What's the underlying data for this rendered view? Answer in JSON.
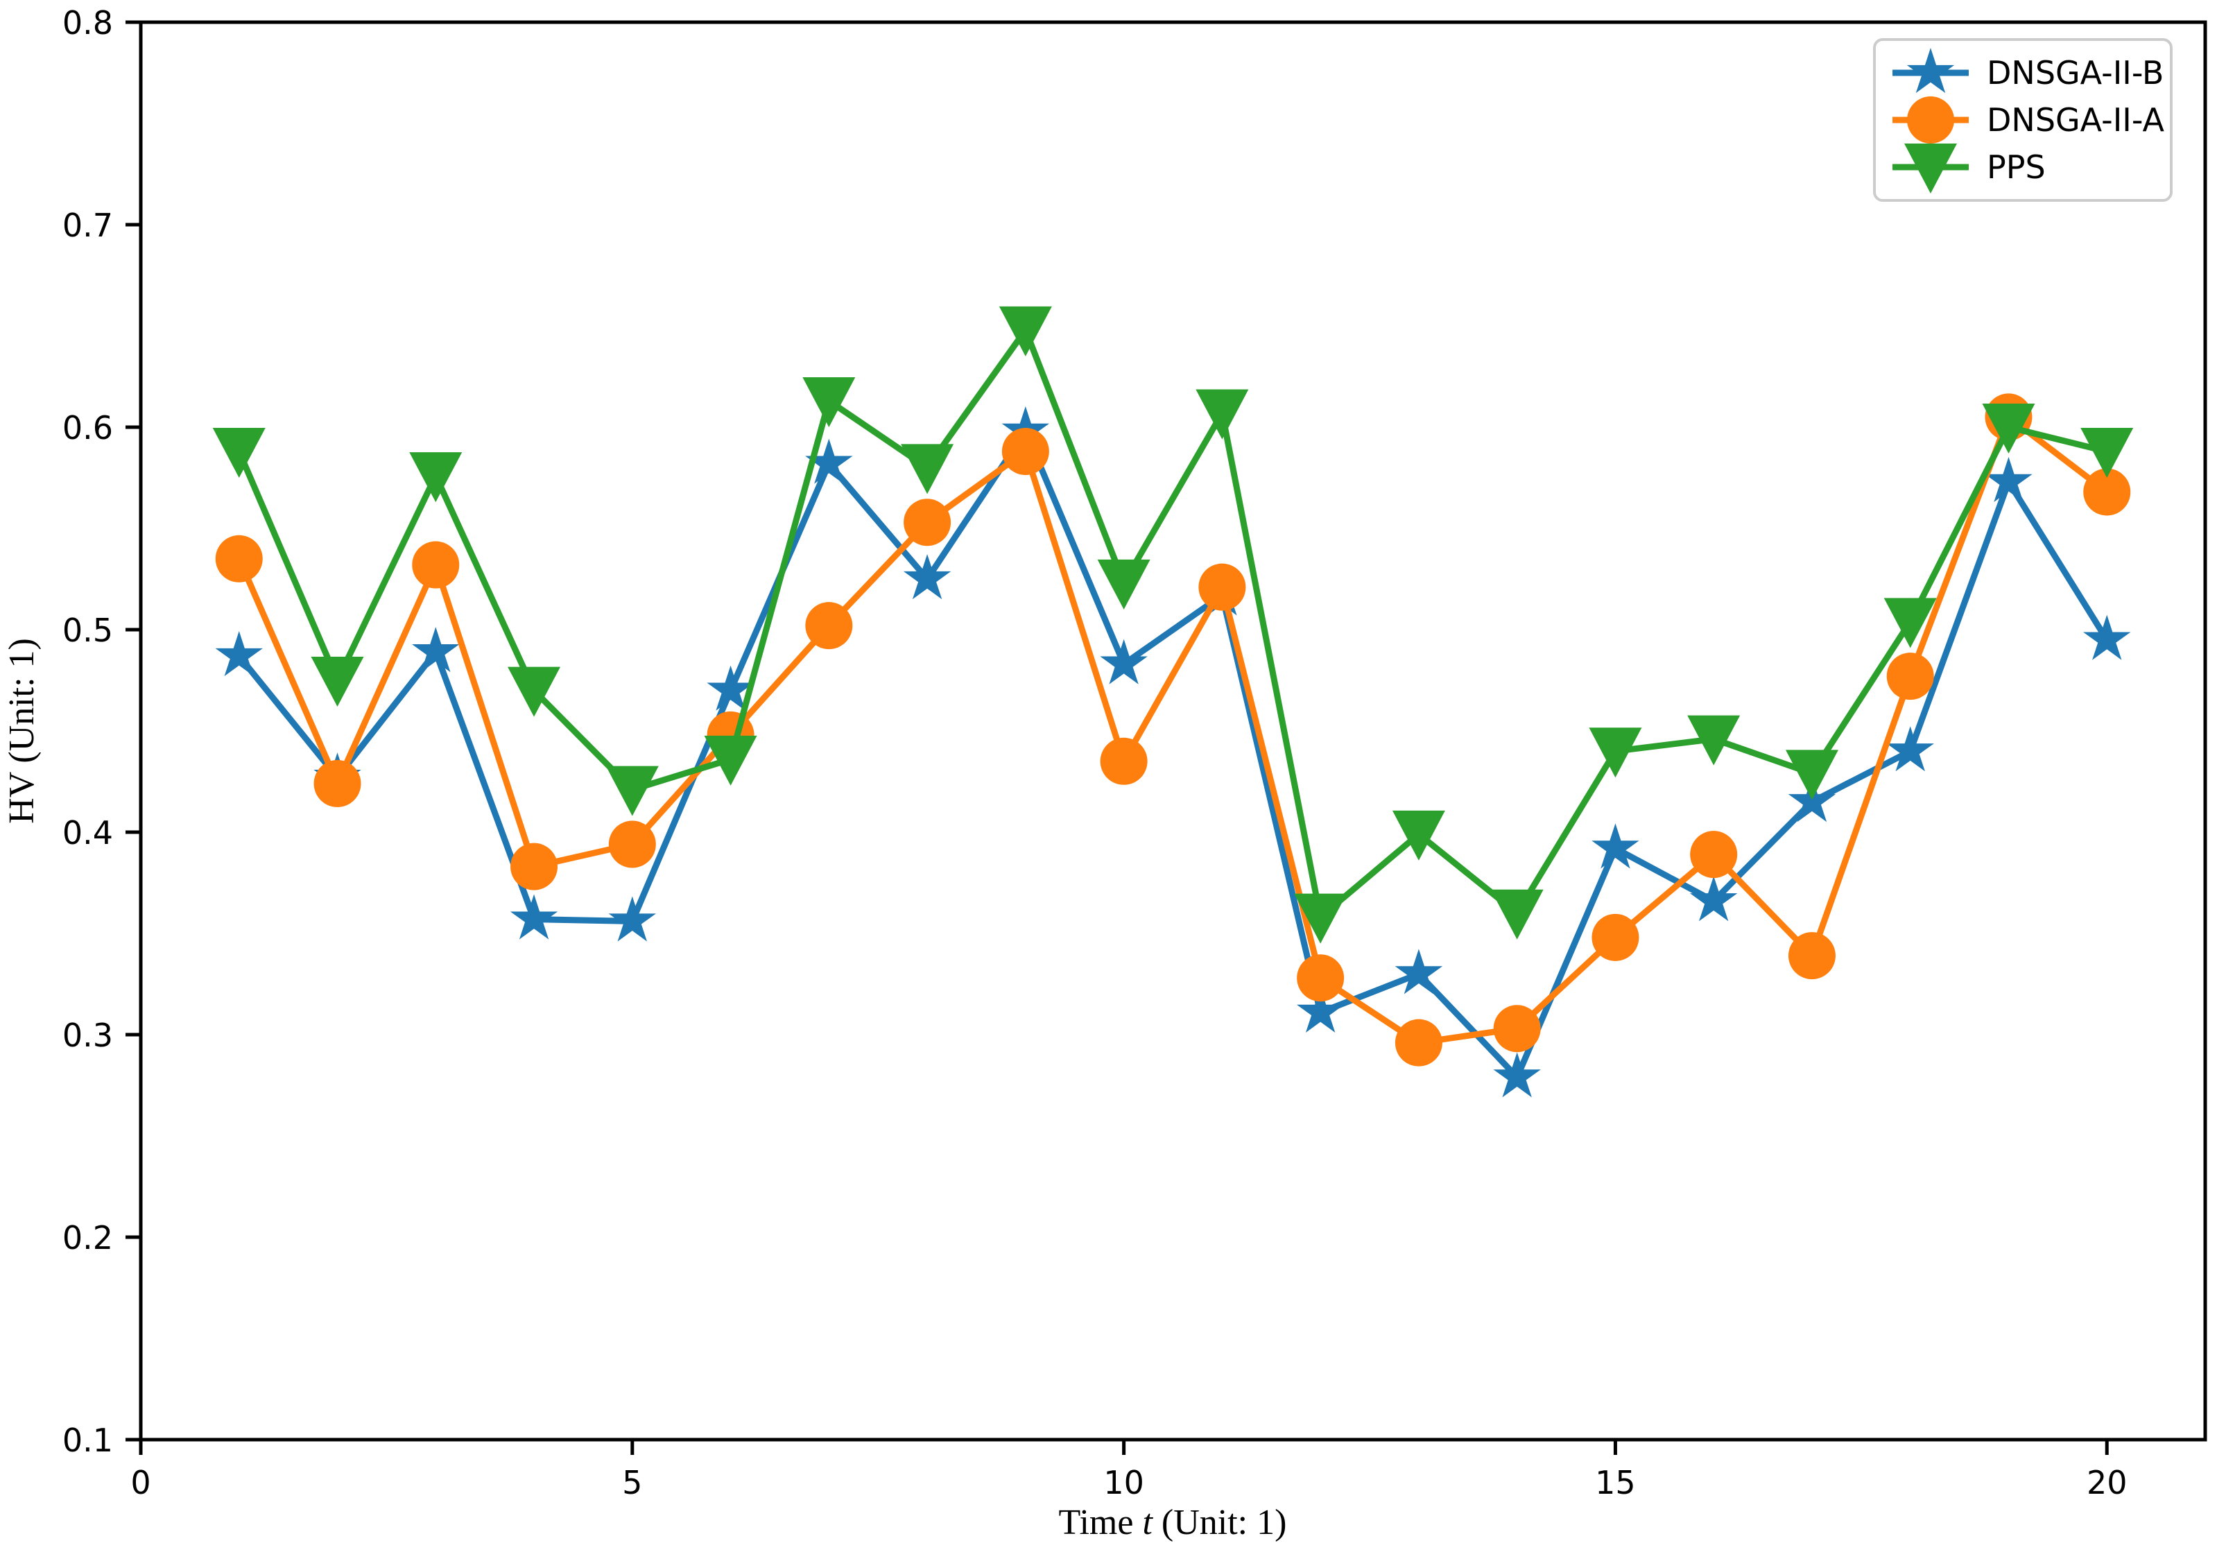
{
  "chart_data": {
    "type": "line",
    "title": "",
    "xlabel": "Time t (Unit: 1)",
    "xlabel_parts": {
      "pre": "Time ",
      "italic": "t",
      "post": " (Unit: 1)"
    },
    "ylabel": "HV (Unit: 1)",
    "x": [
      1,
      2,
      3,
      4,
      5,
      6,
      7,
      8,
      9,
      10,
      11,
      12,
      13,
      14,
      15,
      16,
      17,
      18,
      19,
      20
    ],
    "xlim": [
      0,
      21.0
    ],
    "ylim": [
      0.1,
      0.8
    ],
    "xticks": [
      0,
      5,
      10,
      15,
      20
    ],
    "yticks": [
      0.1,
      0.2,
      0.3,
      0.4,
      0.5,
      0.6,
      0.7,
      0.8
    ],
    "grid": false,
    "legend_position": "upper right",
    "series": [
      {
        "name": "DNSGA-II-B",
        "color": "#1f77b4",
        "marker": "star",
        "values": [
          0.487,
          0.427,
          0.489,
          0.357,
          0.356,
          0.47,
          0.582,
          0.525,
          0.598,
          0.483,
          0.517,
          0.311,
          0.33,
          0.279,
          0.392,
          0.366,
          0.415,
          0.44,
          0.573,
          0.495
        ]
      },
      {
        "name": "DNSGA-II-A",
        "color": "#ff7f0e",
        "marker": "circle",
        "values": [
          0.535,
          0.424,
          0.532,
          0.383,
          0.394,
          0.448,
          0.502,
          0.553,
          0.588,
          0.435,
          0.521,
          0.328,
          0.296,
          0.303,
          0.348,
          0.389,
          0.339,
          0.477,
          0.605,
          0.568
        ]
      },
      {
        "name": "PPS",
        "color": "#2ca02c",
        "marker": "triangle-down",
        "values": [
          0.588,
          0.475,
          0.576,
          0.47,
          0.421,
          0.436,
          0.613,
          0.58,
          0.648,
          0.523,
          0.607,
          0.358,
          0.399,
          0.36,
          0.44,
          0.446,
          0.429,
          0.504,
          0.6,
          0.588
        ]
      }
    ],
    "legend_edge_color": "#cccccc",
    "axis_color": "#000000"
  }
}
